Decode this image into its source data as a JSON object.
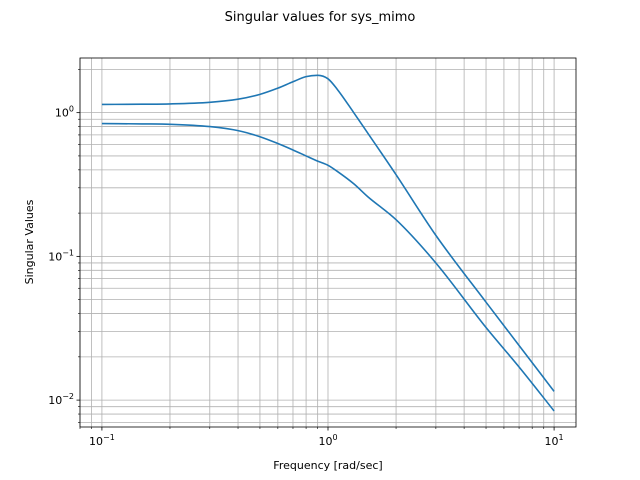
{
  "chart_data": {
    "type": "line",
    "title": "Singular values for sys_mimo",
    "xlabel": "Frequency [rad/sec]",
    "ylabel": "Singular Values",
    "x_scale": "log",
    "y_scale": "log",
    "xlim": [
      0.08,
      12.5
    ],
    "ylim": [
      0.0065,
      2.4
    ],
    "grid": true,
    "line_color": "#1f77b4",
    "x_ticks": [
      {
        "value": 0.1,
        "base": "10",
        "exp": "−1"
      },
      {
        "value": 1,
        "base": "10",
        "exp": "0"
      },
      {
        "value": 10,
        "base": "10",
        "exp": "1"
      }
    ],
    "y_ticks": [
      {
        "value": 0.01,
        "base": "10",
        "exp": "−2"
      },
      {
        "value": 0.1,
        "base": "10",
        "exp": "−1"
      },
      {
        "value": 1,
        "base": "10",
        "exp": "0"
      }
    ],
    "x": [
      0.1,
      0.15,
      0.2,
      0.3,
      0.4,
      0.5,
      0.6,
      0.7,
      0.8,
      0.9,
      1.0,
      1.1,
      1.3,
      1.5,
      2.0,
      3.0,
      5.0,
      7.0,
      10.0
    ],
    "series": [
      {
        "values": [
          1.14,
          1.145,
          1.15,
          1.18,
          1.24,
          1.34,
          1.48,
          1.64,
          1.78,
          1.82,
          1.72,
          1.45,
          1.0,
          0.72,
          0.37,
          0.14,
          0.048,
          0.024,
          0.0115
        ]
      },
      {
        "values": [
          0.84,
          0.835,
          0.83,
          0.8,
          0.75,
          0.68,
          0.61,
          0.55,
          0.5,
          0.46,
          0.43,
          0.39,
          0.32,
          0.26,
          0.18,
          0.09,
          0.032,
          0.017,
          0.0084
        ]
      }
    ]
  }
}
